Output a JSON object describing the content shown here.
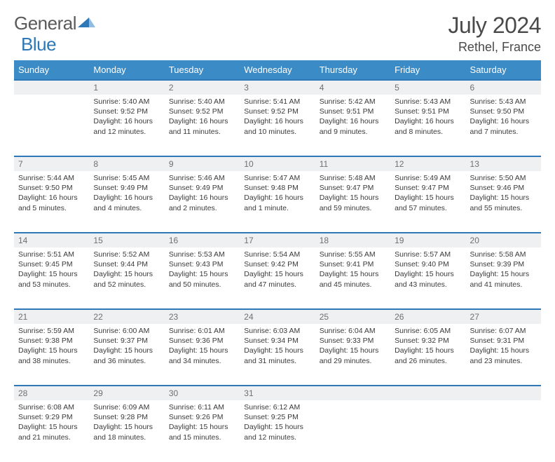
{
  "brand": {
    "part1": "General",
    "part2": "Blue"
  },
  "title": "July 2024",
  "location": "Rethel, France",
  "weekdays": [
    "Sunday",
    "Monday",
    "Tuesday",
    "Wednesday",
    "Thursday",
    "Friday",
    "Saturday"
  ],
  "colors": {
    "header_bg": "#3b8bc7",
    "row_border": "#2f78b7",
    "daynum_bg": "#eef0f1",
    "text": "#3a3a3a",
    "muted": "#707070"
  },
  "weeks": [
    [
      null,
      {
        "n": "1",
        "sr": "5:40 AM",
        "ss": "9:52 PM",
        "dl": "16 hours and 12 minutes."
      },
      {
        "n": "2",
        "sr": "5:40 AM",
        "ss": "9:52 PM",
        "dl": "16 hours and 11 minutes."
      },
      {
        "n": "3",
        "sr": "5:41 AM",
        "ss": "9:52 PM",
        "dl": "16 hours and 10 minutes."
      },
      {
        "n": "4",
        "sr": "5:42 AM",
        "ss": "9:51 PM",
        "dl": "16 hours and 9 minutes."
      },
      {
        "n": "5",
        "sr": "5:43 AM",
        "ss": "9:51 PM",
        "dl": "16 hours and 8 minutes."
      },
      {
        "n": "6",
        "sr": "5:43 AM",
        "ss": "9:50 PM",
        "dl": "16 hours and 7 minutes."
      }
    ],
    [
      {
        "n": "7",
        "sr": "5:44 AM",
        "ss": "9:50 PM",
        "dl": "16 hours and 5 minutes."
      },
      {
        "n": "8",
        "sr": "5:45 AM",
        "ss": "9:49 PM",
        "dl": "16 hours and 4 minutes."
      },
      {
        "n": "9",
        "sr": "5:46 AM",
        "ss": "9:49 PM",
        "dl": "16 hours and 2 minutes."
      },
      {
        "n": "10",
        "sr": "5:47 AM",
        "ss": "9:48 PM",
        "dl": "16 hours and 1 minute."
      },
      {
        "n": "11",
        "sr": "5:48 AM",
        "ss": "9:47 PM",
        "dl": "15 hours and 59 minutes."
      },
      {
        "n": "12",
        "sr": "5:49 AM",
        "ss": "9:47 PM",
        "dl": "15 hours and 57 minutes."
      },
      {
        "n": "13",
        "sr": "5:50 AM",
        "ss": "9:46 PM",
        "dl": "15 hours and 55 minutes."
      }
    ],
    [
      {
        "n": "14",
        "sr": "5:51 AM",
        "ss": "9:45 PM",
        "dl": "15 hours and 53 minutes."
      },
      {
        "n": "15",
        "sr": "5:52 AM",
        "ss": "9:44 PM",
        "dl": "15 hours and 52 minutes."
      },
      {
        "n": "16",
        "sr": "5:53 AM",
        "ss": "9:43 PM",
        "dl": "15 hours and 50 minutes."
      },
      {
        "n": "17",
        "sr": "5:54 AM",
        "ss": "9:42 PM",
        "dl": "15 hours and 47 minutes."
      },
      {
        "n": "18",
        "sr": "5:55 AM",
        "ss": "9:41 PM",
        "dl": "15 hours and 45 minutes."
      },
      {
        "n": "19",
        "sr": "5:57 AM",
        "ss": "9:40 PM",
        "dl": "15 hours and 43 minutes."
      },
      {
        "n": "20",
        "sr": "5:58 AM",
        "ss": "9:39 PM",
        "dl": "15 hours and 41 minutes."
      }
    ],
    [
      {
        "n": "21",
        "sr": "5:59 AM",
        "ss": "9:38 PM",
        "dl": "15 hours and 38 minutes."
      },
      {
        "n": "22",
        "sr": "6:00 AM",
        "ss": "9:37 PM",
        "dl": "15 hours and 36 minutes."
      },
      {
        "n": "23",
        "sr": "6:01 AM",
        "ss": "9:36 PM",
        "dl": "15 hours and 34 minutes."
      },
      {
        "n": "24",
        "sr": "6:03 AM",
        "ss": "9:34 PM",
        "dl": "15 hours and 31 minutes."
      },
      {
        "n": "25",
        "sr": "6:04 AM",
        "ss": "9:33 PM",
        "dl": "15 hours and 29 minutes."
      },
      {
        "n": "26",
        "sr": "6:05 AM",
        "ss": "9:32 PM",
        "dl": "15 hours and 26 minutes."
      },
      {
        "n": "27",
        "sr": "6:07 AM",
        "ss": "9:31 PM",
        "dl": "15 hours and 23 minutes."
      }
    ],
    [
      {
        "n": "28",
        "sr": "6:08 AM",
        "ss": "9:29 PM",
        "dl": "15 hours and 21 minutes."
      },
      {
        "n": "29",
        "sr": "6:09 AM",
        "ss": "9:28 PM",
        "dl": "15 hours and 18 minutes."
      },
      {
        "n": "30",
        "sr": "6:11 AM",
        "ss": "9:26 PM",
        "dl": "15 hours and 15 minutes."
      },
      {
        "n": "31",
        "sr": "6:12 AM",
        "ss": "9:25 PM",
        "dl": "15 hours and 12 minutes."
      },
      null,
      null,
      null
    ]
  ],
  "labels": {
    "sunrise": "Sunrise: ",
    "sunset": "Sunset: ",
    "daylight": "Daylight: "
  }
}
